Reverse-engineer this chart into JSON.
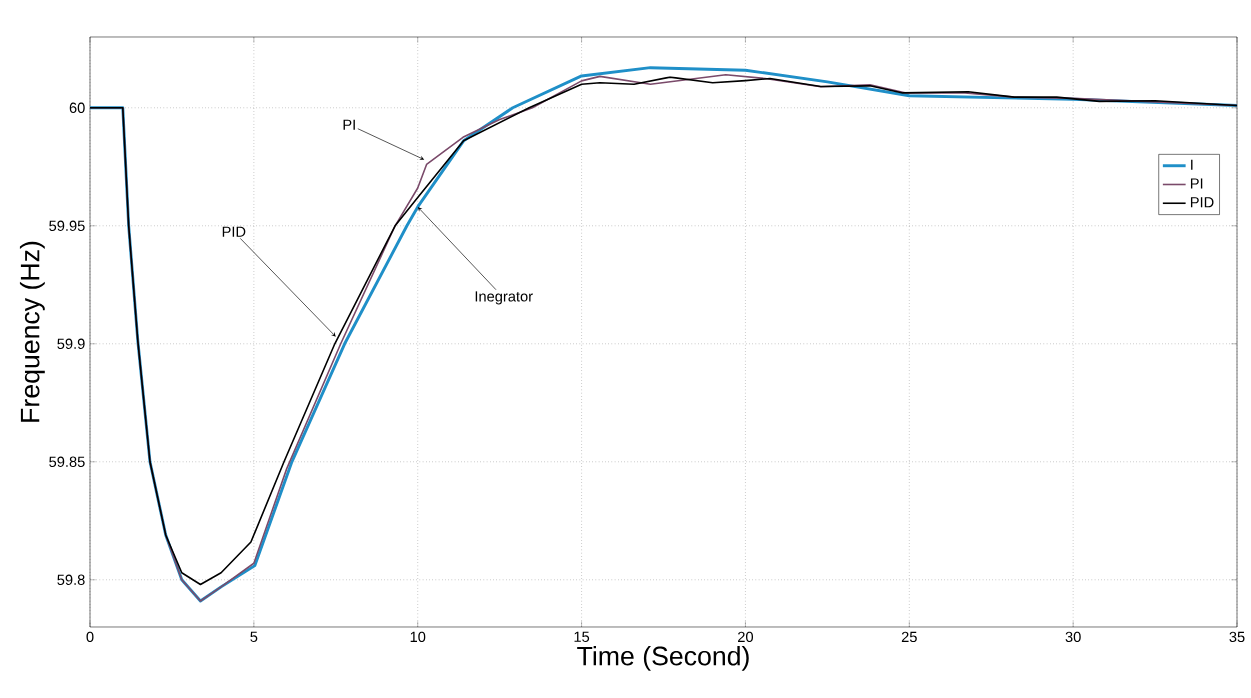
{
  "chart_data": {
    "type": "line",
    "xlabel": "Time (Second)",
    "ylabel": "Frequency (Hz)",
    "xlim": [
      0,
      35
    ],
    "ylim": [
      59.78,
      60.03
    ],
    "xticks": [
      0,
      5,
      10,
      15,
      20,
      25,
      30,
      35
    ],
    "yticks": [
      59.8,
      59.85,
      59.9,
      59.95,
      60
    ],
    "grid": true,
    "legend": "right",
    "series": [
      {
        "name": "I",
        "color": "#1f8fc8",
        "x": [
          0,
          1,
          1.18,
          1.46,
          1.83,
          2.31,
          2.8,
          3.37,
          4.0,
          5.03,
          6.16,
          7.77,
          9.67,
          10,
          11.4,
          12.9,
          15,
          17.1,
          20,
          22.5,
          25,
          30,
          35
        ],
        "values": [
          60,
          60,
          59.95,
          59.901,
          59.85,
          59.819,
          59.8,
          59.791,
          59.797,
          59.806,
          59.85,
          59.9,
          59.95,
          59.958,
          59.986,
          60,
          60.0135,
          60.017,
          60.0159,
          60.011,
          60.0051,
          60.0036,
          60.001
        ]
      },
      {
        "name": "PI",
        "color": "#7a4a6a",
        "x": [
          0,
          1,
          1.18,
          1.46,
          1.83,
          2.31,
          2.8,
          3.37,
          4.0,
          5.0,
          6.0,
          7.65,
          9.31,
          10,
          10.27,
          11.38,
          12.5,
          13.5,
          15,
          15.56,
          17.1,
          19.4,
          20.6,
          22.3,
          23.8,
          24.9,
          26.7,
          28.2,
          30,
          35
        ],
        "values": [
          60,
          60,
          59.95,
          59.901,
          59.85,
          59.819,
          59.8,
          59.791,
          59.797,
          59.807,
          59.847,
          59.9,
          59.95,
          59.966,
          59.976,
          59.9875,
          59.995,
          60,
          60.0114,
          60.0133,
          60.01,
          60.014,
          60.0124,
          60.0089,
          60.0097,
          60.0063,
          60.0063,
          60.0045,
          60.004,
          60.001
        ]
      },
      {
        "name": "PID",
        "color": "#000000",
        "x": [
          0,
          1,
          1.18,
          1.46,
          1.83,
          2.31,
          2.8,
          3.37,
          4.0,
          4.91,
          5.92,
          7.47,
          9.31,
          10,
          11.4,
          13.4,
          15,
          15.56,
          16.6,
          17.7,
          19,
          20,
          20.75,
          22.3,
          23.8,
          24.8,
          26.8,
          28.2,
          29.5,
          30.8,
          32.5,
          35
        ],
        "values": [
          60,
          60,
          59.95,
          59.901,
          59.85,
          59.819,
          59.803,
          59.798,
          59.803,
          59.816,
          59.85,
          59.9,
          59.95,
          59.962,
          59.986,
          60,
          60.01,
          60.0106,
          60.01,
          60.013,
          60.0106,
          60.0115,
          60.0124,
          60.009,
          60.0093,
          60.0063,
          60.0068,
          60.0045,
          60.0045,
          60.0027,
          60.003,
          60.001
        ]
      }
    ],
    "annotations": [
      {
        "text": "PI",
        "x": 10.2,
        "y": 59.978
      },
      {
        "text": "PID",
        "x": 7.5,
        "y": 59.903
      },
      {
        "text": "Inegrator",
        "x": 10.0,
        "y": 59.958
      }
    ]
  }
}
